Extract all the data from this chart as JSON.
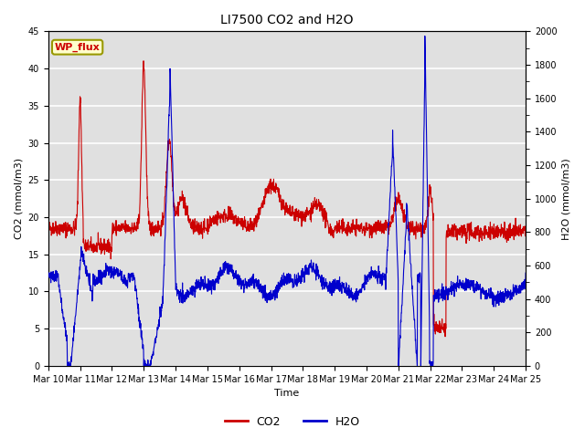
{
  "title": "LI7500 CO2 and H2O",
  "xlabel": "Time",
  "ylabel_left": "CO2 (mmol/m3)",
  "ylabel_right": "H2O (mmol/m3)",
  "xlim": [
    0,
    15
  ],
  "ylim_left": [
    0,
    45
  ],
  "ylim_right": [
    0,
    2000
  ],
  "yticks_left": [
    0,
    5,
    10,
    15,
    20,
    25,
    30,
    35,
    40,
    45
  ],
  "yticks_right": [
    0,
    200,
    400,
    600,
    800,
    1000,
    1200,
    1400,
    1600,
    1800,
    2000
  ],
  "xtick_labels": [
    "Mar 10",
    "Mar 11",
    "Mar 12",
    "Mar 13",
    "Mar 14",
    "Mar 15",
    "Mar 16",
    "Mar 17",
    "Mar 18",
    "Mar 19",
    "Mar 20",
    "Mar 21",
    "Mar 22",
    "Mar 23",
    "Mar 24",
    "Mar 25"
  ],
  "xtick_positions": [
    0,
    1,
    2,
    3,
    4,
    5,
    6,
    7,
    8,
    9,
    10,
    11,
    12,
    13,
    14,
    15
  ],
  "co2_color": "#cc0000",
  "h2o_color": "#0000cc",
  "annotation_text": "WP_flux",
  "annotation_box_color": "#ffffcc",
  "annotation_box_edge": "#999900",
  "bg_color": "#e0e0e0",
  "grid_color": "#ffffff",
  "linewidth": 0.8,
  "tick_fontsize": 7,
  "label_fontsize": 8,
  "title_fontsize": 10
}
